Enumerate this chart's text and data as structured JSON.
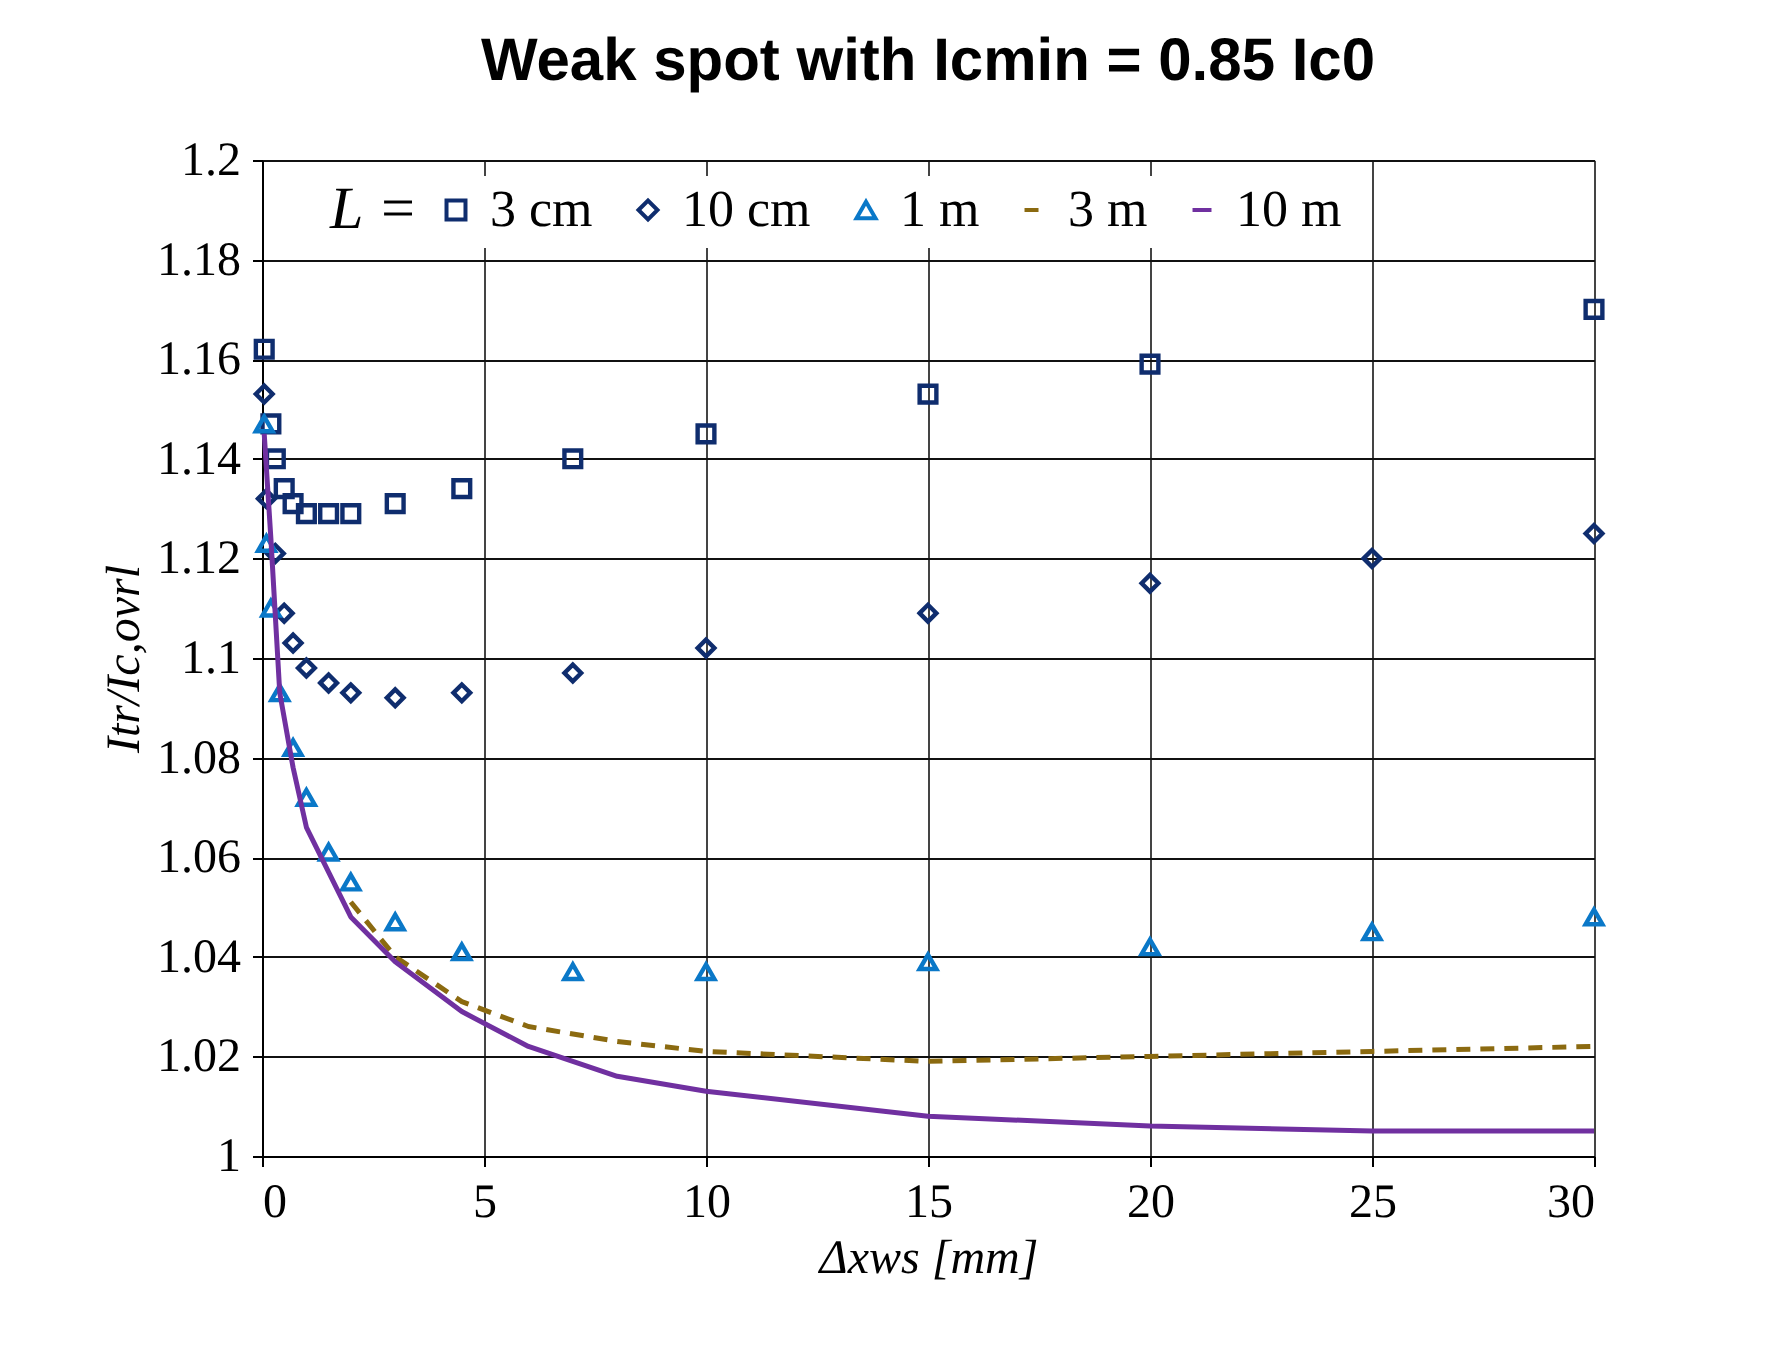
{
  "chart_data": {
    "type": "scatter",
    "title": "Weak spot with Icmin = 0.85 Ic0",
    "xlabel": "Δxws [mm]",
    "ylabel": "Itr/Ic,ovrl",
    "legend_title": "L =",
    "xlim": [
      0,
      30
    ],
    "xticks": [
      0,
      5,
      10,
      15,
      20,
      25,
      30
    ],
    "ylim": [
      1,
      1.2
    ],
    "yticks": [
      1,
      1.02,
      1.04,
      1.06,
      1.08,
      1.1,
      1.12,
      1.14,
      1.16,
      1.18,
      1.2
    ],
    "grid": true,
    "legend": "top",
    "series": [
      {
        "name": "3 cm",
        "type": "scatter",
        "marker": "square",
        "color": "#0f2d6e",
        "x": [
          0.05,
          0.2,
          0.3,
          0.5,
          0.7,
          1,
          1.5,
          2,
          3,
          4.5,
          7,
          10,
          15,
          20,
          30
        ],
        "values": [
          1.162,
          1.147,
          1.14,
          1.134,
          1.131,
          1.129,
          1.129,
          1.129,
          1.131,
          1.134,
          1.14,
          1.145,
          1.153,
          1.159,
          1.17
        ]
      },
      {
        "name": "10 cm",
        "type": "scatter",
        "marker": "diamond",
        "color": "#0f2d6e",
        "x": [
          0.05,
          0.1,
          0.3,
          0.5,
          0.7,
          1,
          1.5,
          2,
          3,
          4.5,
          7,
          10,
          15,
          20,
          25,
          30
        ],
        "values": [
          1.153,
          1.132,
          1.121,
          1.109,
          1.103,
          1.098,
          1.095,
          1.093,
          1.092,
          1.093,
          1.097,
          1.102,
          1.109,
          1.115,
          1.12,
          1.125
        ]
      },
      {
        "name": "1 m",
        "type": "scatter",
        "marker": "triangle",
        "color": "#0a78c8",
        "x": [
          0.05,
          0.1,
          0.2,
          0.4,
          0.7,
          1,
          1.5,
          2,
          3,
          4.5,
          7,
          10,
          15,
          20,
          25,
          30
        ],
        "values": [
          1.147,
          1.123,
          1.11,
          1.093,
          1.082,
          1.072,
          1.061,
          1.055,
          1.047,
          1.041,
          1.037,
          1.037,
          1.039,
          1.042,
          1.045,
          1.048
        ]
      },
      {
        "name": "3 m",
        "type": "line",
        "line_style": "dashed",
        "marker": "none",
        "color": "#8b6a10",
        "x": [
          2,
          3,
          4.5,
          6,
          8,
          10,
          15,
          20,
          25,
          30
        ],
        "values": [
          1.051,
          1.04,
          1.031,
          1.026,
          1.023,
          1.021,
          1.019,
          1.02,
          1.021,
          1.022
        ]
      },
      {
        "name": "10 m",
        "type": "line",
        "line_style": "solid",
        "marker": "none",
        "color": "#7030a0",
        "x": [
          0.05,
          0.2,
          0.4,
          0.7,
          1,
          1.5,
          2,
          3,
          4.5,
          6,
          8,
          10,
          15,
          20,
          25,
          30
        ],
        "values": [
          1.145,
          1.124,
          1.093,
          1.078,
          1.066,
          1.057,
          1.048,
          1.039,
          1.029,
          1.022,
          1.016,
          1.013,
          1.008,
          1.006,
          1.005,
          1.005
        ]
      }
    ]
  }
}
